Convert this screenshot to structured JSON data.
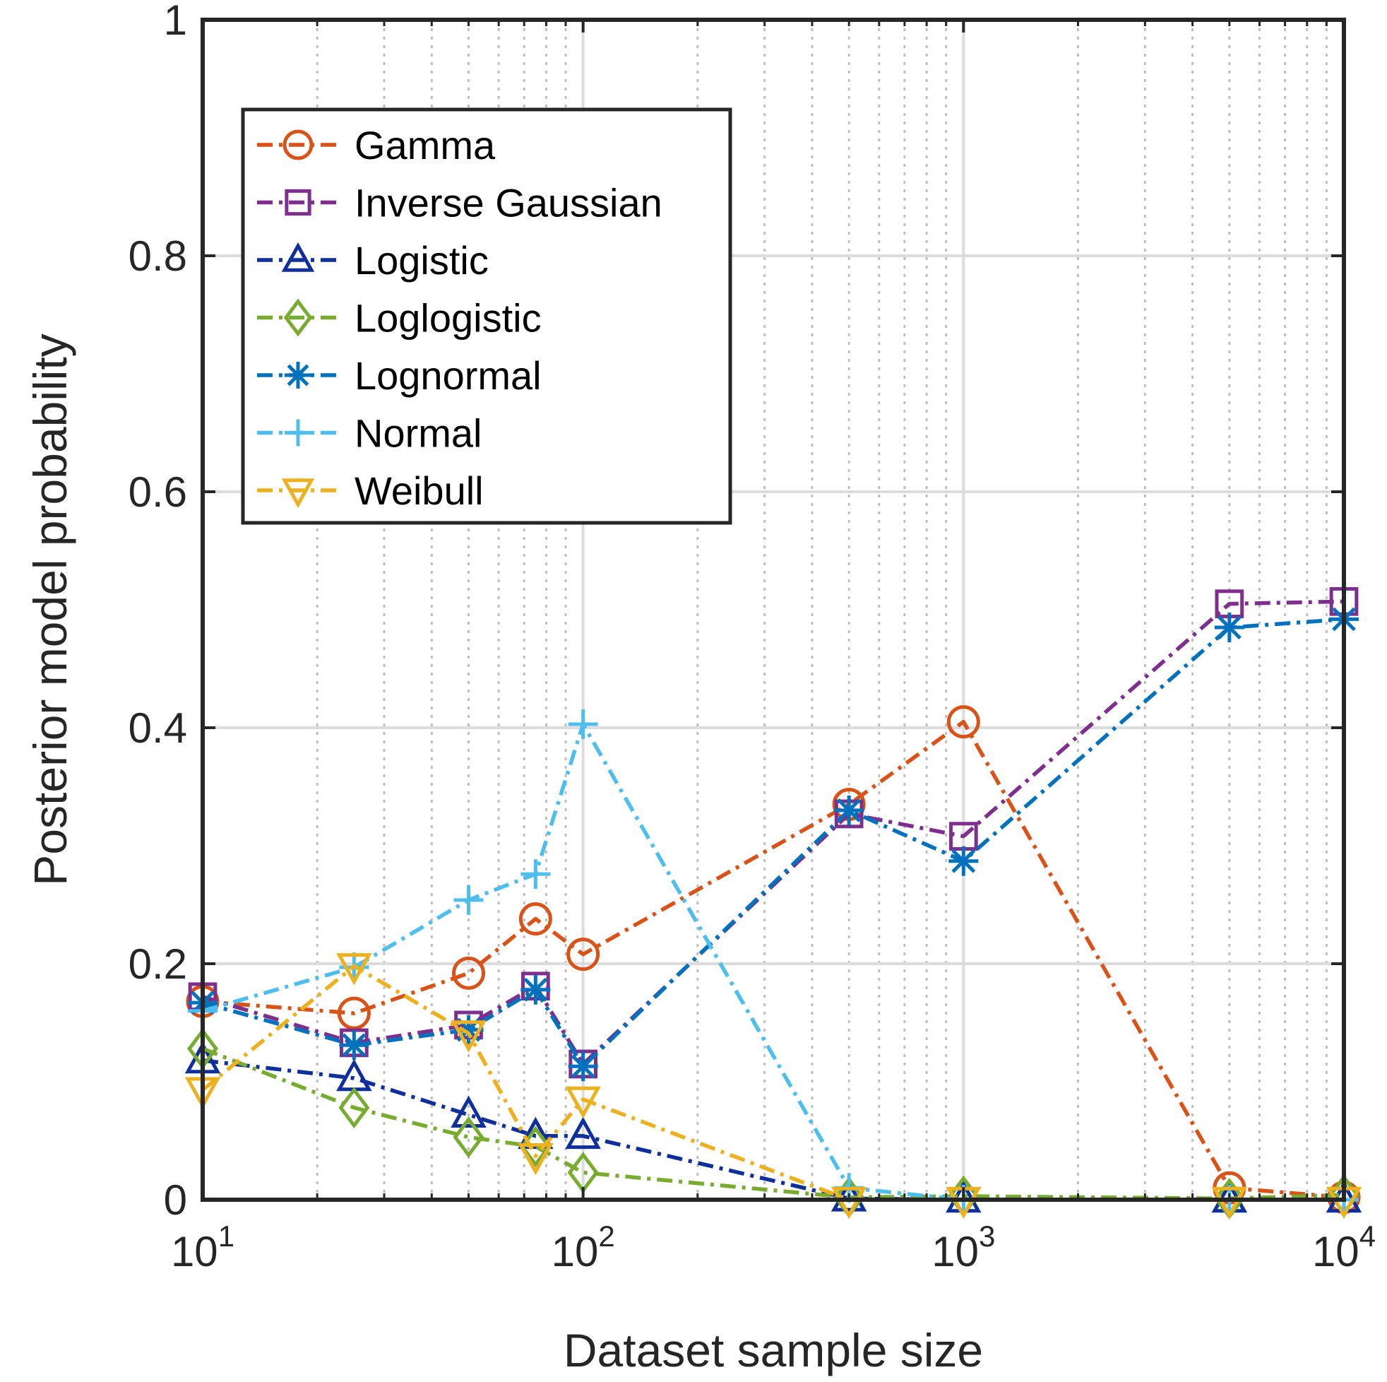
{
  "chart_data": {
    "type": "line",
    "xlabel": "Dataset sample size",
    "ylabel": "Posterior model probability",
    "xscale": "log",
    "xlim": [
      10,
      10000
    ],
    "ylim": [
      0,
      1
    ],
    "x_ticks": [
      10,
      100,
      1000,
      10000
    ],
    "x_tick_labels": [
      {
        "base": "10",
        "exp": "1"
      },
      {
        "base": "10",
        "exp": "2"
      },
      {
        "base": "10",
        "exp": "3"
      },
      {
        "base": "10",
        "exp": "4"
      }
    ],
    "y_ticks": [
      0,
      0.2,
      0.4,
      0.6,
      0.8,
      1
    ],
    "y_tick_labels": [
      "0",
      "0.2",
      "0.4",
      "0.6",
      "0.8",
      "1"
    ],
    "grid": true,
    "minor_grid": true,
    "legend_position": "top-left",
    "x": [
      10,
      25,
      50,
      75,
      100,
      500,
      1000,
      5000,
      10000
    ],
    "series": [
      {
        "name": "Gamma",
        "color": "#D95319",
        "marker": "circle",
        "values": [
          0.168,
          0.158,
          0.192,
          0.238,
          0.208,
          0.335,
          0.405,
          0.01,
          0.002
        ]
      },
      {
        "name": "Inverse Gaussian",
        "color": "#7E2F8E",
        "marker": "square",
        "values": [
          0.172,
          0.133,
          0.148,
          0.181,
          0.115,
          0.327,
          0.308,
          0.505,
          0.507
        ]
      },
      {
        "name": "Logistic",
        "color": "#0F2F9B",
        "marker": "triangle-up",
        "values": [
          0.118,
          0.103,
          0.072,
          0.054,
          0.054,
          0.001,
          0.0,
          0.0,
          0.0
        ]
      },
      {
        "name": "Loglogistic",
        "color": "#77AC30",
        "marker": "diamond",
        "values": [
          0.128,
          0.078,
          0.053,
          0.045,
          0.023,
          0.002,
          0.003,
          0.001,
          0.004
        ]
      },
      {
        "name": "Lognormal",
        "color": "#0072BD",
        "marker": "asterisk",
        "values": [
          0.167,
          0.131,
          0.144,
          0.178,
          0.113,
          0.33,
          0.287,
          0.485,
          0.492
        ]
      },
      {
        "name": "Normal",
        "color": "#4DBEEE",
        "marker": "plus",
        "values": [
          0.16,
          0.197,
          0.254,
          0.276,
          0.403,
          0.01,
          0.0,
          0.0,
          0.0
        ]
      },
      {
        "name": "Weibull",
        "color": "#EDB120",
        "marker": "triangle-down",
        "values": [
          0.093,
          0.198,
          0.141,
          0.037,
          0.085,
          0.0,
          0.0,
          0.0,
          0.0
        ]
      }
    ]
  }
}
